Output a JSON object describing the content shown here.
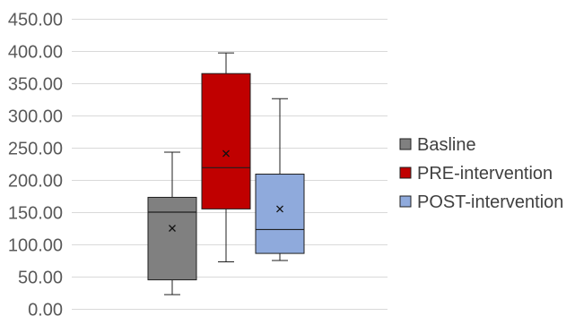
{
  "chart_data": {
    "type": "box",
    "title": "",
    "xlabel": "",
    "ylabel": "",
    "ylim": [
      0,
      450
    ],
    "y_ticks": [
      "0.00",
      "50.00",
      "100.00",
      "150.00",
      "200.00",
      "250.00",
      "300.00",
      "350.00",
      "400.00",
      "450.00"
    ],
    "grid": true,
    "legend_position": "right",
    "series": [
      {
        "name": "Basline",
        "color": "#808080",
        "min": 22,
        "q1": 45,
        "median": 150,
        "q3": 173,
        "max": 243,
        "mean": 125
      },
      {
        "name": "PRE-intervention",
        "color": "#c00000",
        "min": 73,
        "q1": 155,
        "median": 219,
        "q3": 365,
        "max": 397,
        "mean": 241
      },
      {
        "name": "POST-intervention",
        "color": "#8faadc",
        "min": 75,
        "q1": 86,
        "median": 123,
        "q3": 209,
        "max": 326,
        "mean": 155
      }
    ]
  }
}
